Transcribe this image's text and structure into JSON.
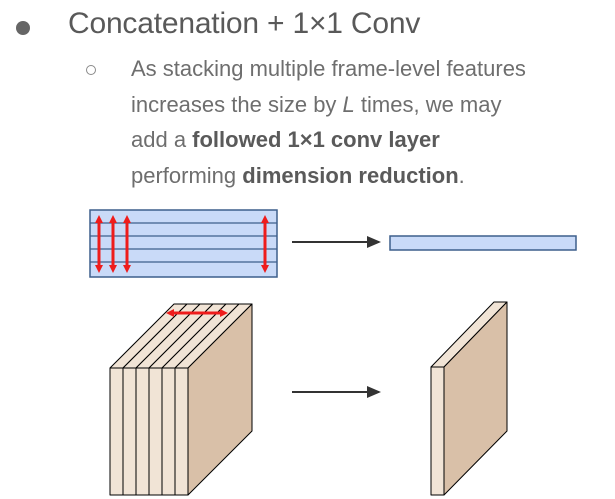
{
  "heading": "Concatenation + 1×1 Conv",
  "paragraph": {
    "line1": "As stacking multiple frame-level features",
    "line2_a": "increases the size by ",
    "line2_var": "L",
    "line2_b": " times, we may",
    "line3_a": "add a ",
    "line3_bold": "followed 1×1 conv layer",
    "line4_a": "performing ",
    "line4_bold": "dimension reduction",
    "line4_b": "."
  },
  "colors": {
    "stack_fill": "#c9daf8",
    "stack_line": "#3d5f8c",
    "arrow_red": "#ee1c1c",
    "slice_face": "#d9c0a8",
    "slice_edge": "#f1e4d6",
    "outline": "#000000"
  },
  "icons": {
    "bullet": "filled-circle-bullet",
    "sub_bullet": "hollow-circle-bullet",
    "arrow": "right-arrow-icon",
    "double_arrow": "red-double-headed-arrow"
  }
}
